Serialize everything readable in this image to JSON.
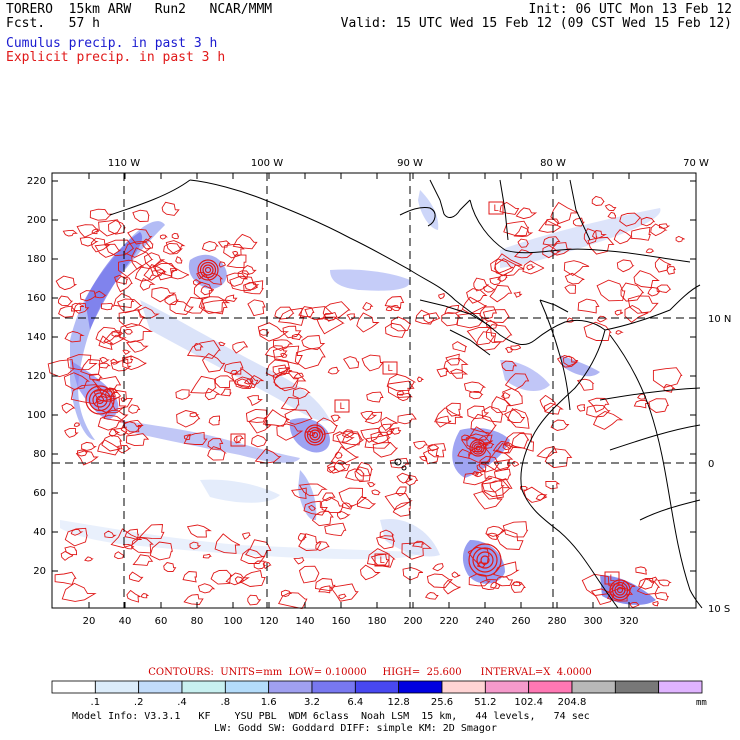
{
  "header": {
    "line1_left": "TORERO  15km ARW   Run2   NCAR/MMM",
    "line2_left": "Fcst.   57 h",
    "line1_right": "Init: 06 UTC Mon 13 Feb 12",
    "line2_right": "Valid: 15 UTC Wed 15 Feb 12 (09 CST Wed 15 Feb 12)",
    "legend_cumulus": "Cumulus precip. in past 3 h",
    "legend_explicit": "Explicit precip. in past 3 h"
  },
  "map": {
    "top_lon_labels": [
      "110 W",
      "100 W",
      "90 W",
      "80 W",
      "70 W"
    ],
    "right_lat_labels": [
      "10 N",
      "0",
      "10 S"
    ],
    "left_ticks": [
      "220",
      "200",
      "180",
      "160",
      "140",
      "120",
      "100",
      "80",
      "60",
      "40",
      "20"
    ],
    "bottom_ticks": [
      "20",
      "40",
      "60",
      "80",
      "100",
      "120",
      "140",
      "160",
      "180",
      "200",
      "220",
      "240",
      "260",
      "280",
      "300",
      "320"
    ],
    "low_markers": [
      "L",
      "L",
      "L",
      "L",
      "L",
      "L"
    ],
    "colors": {
      "contour": "#e01818",
      "land": "#000000",
      "grid": "#000000"
    }
  },
  "colorbar": {
    "labels": [
      ".1",
      ".2",
      ".4",
      ".8",
      "1.6",
      "3.2",
      "6.4",
      "12.8",
      "25.6",
      "51.2",
      "102.4",
      "204.8"
    ],
    "units": "mm",
    "colors": [
      "#ffffff",
      "#dcecfa",
      "#c2dcfa",
      "#c8f0f0",
      "#b4dcfa",
      "#a0a0f0",
      "#7878f0",
      "#4848f0",
      "#0000e0",
      "#ffd4d4",
      "#f59acb",
      "#ff78b4",
      "#b8b8b8",
      "#787878",
      "#e0b4ff"
    ]
  },
  "footer": {
    "contours_line": "CONTOURS:  UNITS=mm  LOW= 0.10000     HIGH=  25.600      INTERVAL=X  4.0000",
    "model_info_1": "Model Info: V3.3.1   KF    YSU PBL  WDM 6class  Noah LSM  15 km,   44 levels,   74 sec",
    "model_info_2": "LW: Godd SW: Goddard DIFF: simple KM: 2D Smagor"
  }
}
